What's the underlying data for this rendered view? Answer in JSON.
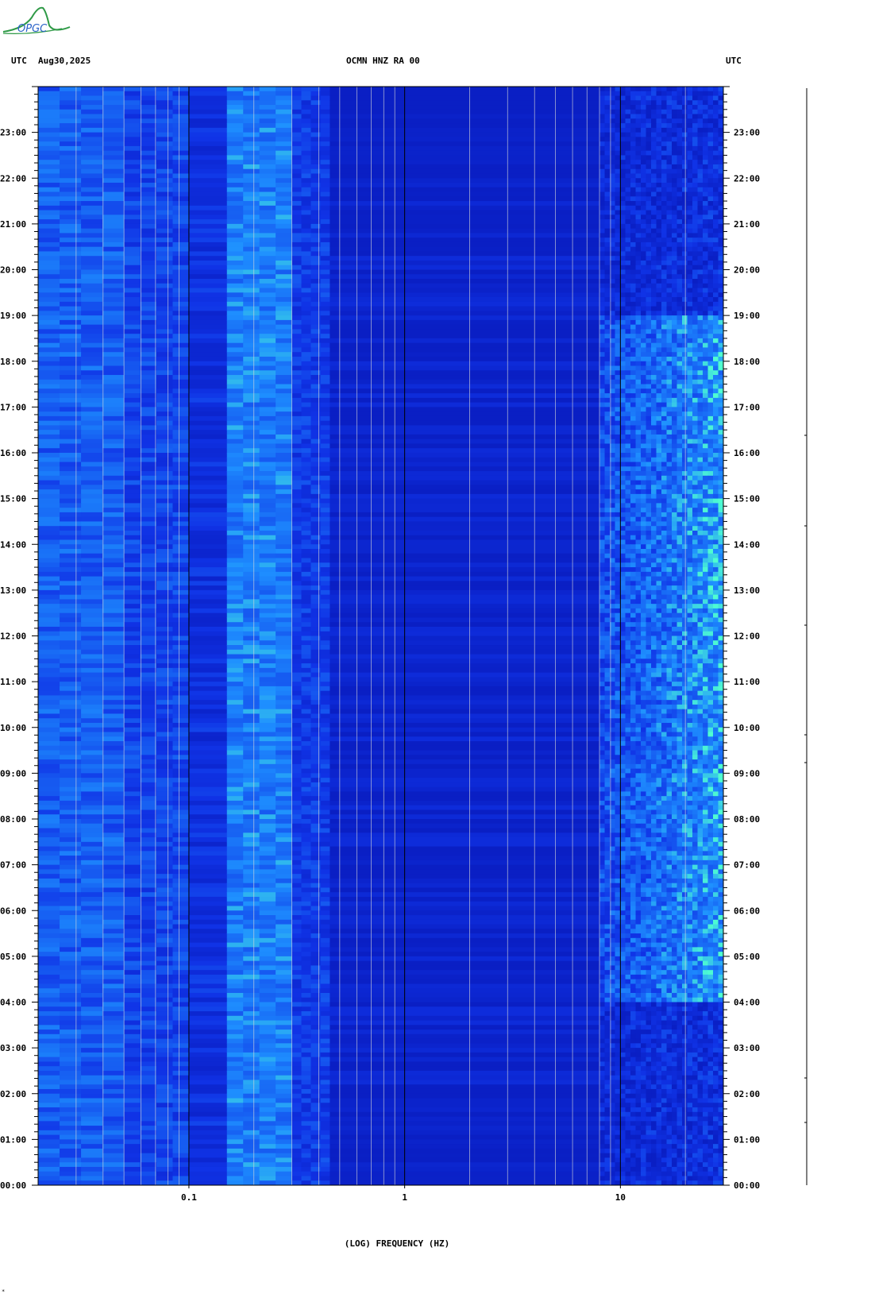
{
  "header": {
    "left_tz": "UTC",
    "date": "Aug30,2025",
    "station": "OCMN HNZ RA 00",
    "right_tz": "UTC"
  },
  "logo": {
    "text": "OPGC"
  },
  "footnote": "*",
  "colors": {
    "background": "#1033e6",
    "deep": "#0a1fc4",
    "bright": "#1e8fff",
    "hot": "#4fffd0",
    "gridline": "#d9d9d9",
    "decade_line": "#000000"
  },
  "chart_data": {
    "type": "heatmap",
    "title": "OCMN HNZ RA 00",
    "xlabel": "(LOG) FREQUENCY (HZ)",
    "ylabel": "UTC",
    "x_scale": "log",
    "xlim": [
      0.02,
      30
    ],
    "ylim_hours": [
      0,
      24
    ],
    "x_ticks": [
      {
        "value": 0.1,
        "label": "0.1"
      },
      {
        "value": 1,
        "label": "1"
      },
      {
        "value": 10,
        "label": "10"
      }
    ],
    "y_ticks": [
      "00:00",
      "01:00",
      "02:00",
      "03:00",
      "04:00",
      "05:00",
      "06:00",
      "07:00",
      "08:00",
      "09:00",
      "10:00",
      "11:00",
      "12:00",
      "13:00",
      "14:00",
      "15:00",
      "16:00",
      "17:00",
      "18:00",
      "19:00",
      "20:00",
      "21:00",
      "22:00",
      "23:00"
    ],
    "gridlines_hz": [
      0.03,
      0.04,
      0.05,
      0.06,
      0.07,
      0.08,
      0.09,
      0.2,
      0.3,
      0.4,
      0.5,
      0.6,
      0.7,
      0.8,
      0.9,
      2,
      3,
      4,
      5,
      6,
      7,
      8,
      9,
      20
    ],
    "bands": [
      {
        "fmin": 0.02,
        "fmax": 0.05,
        "level": 0.55
      },
      {
        "fmin": 0.05,
        "fmax": 0.1,
        "level": 0.4
      },
      {
        "fmin": 0.1,
        "fmax": 0.15,
        "level": 0.25
      },
      {
        "fmin": 0.15,
        "fmax": 0.3,
        "level": 0.7
      },
      {
        "fmin": 0.3,
        "fmax": 0.45,
        "level": 0.35
      },
      {
        "fmin": 0.45,
        "fmax": 8,
        "level": 0.05
      },
      {
        "fmin": 8,
        "fmax": 30,
        "level": 0.5
      }
    ],
    "active_window_hours": [
      4,
      19
    ]
  }
}
